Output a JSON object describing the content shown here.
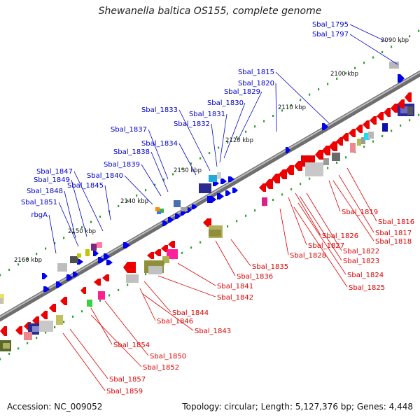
{
  "title": "Shewanella baltica OS155, complete genome",
  "footer": {
    "accession": "Accession: NC_009052",
    "topology": "Topology: circular; Length: 5,127,376 bp; Genes: 4,448"
  },
  "colors": {
    "forward_gene": "#0000ee",
    "reverse_gene": "#ee0000",
    "forward_label": "#0000cc",
    "reverse_label": "#dd0000",
    "backbone": "#8a8a8a",
    "tick": "#2e9e2e"
  },
  "kbp_ticks": [
    {
      "label": "2090 kbp",
      "side": "above"
    },
    {
      "label": "2100 kbp",
      "side": "above"
    },
    {
      "label": "2110 kbp",
      "side": "above"
    },
    {
      "label": "2120 kbp",
      "side": "above"
    },
    {
      "label": "2130 kbp",
      "side": "above"
    },
    {
      "label": "2140 kbp",
      "side": "above"
    },
    {
      "label": "2150 kbp",
      "side": "above"
    },
    {
      "label": "2160 kbp",
      "side": "above"
    }
  ],
  "forward_labels": [
    "Sbal_1795",
    "Sbal_1797",
    "Sbal_1815",
    "Sbal_1820",
    "Sbal_1829",
    "Sbal_1830",
    "Sbal_1831",
    "Sbal_1832",
    "Sbal_1833",
    "Sbal_1837",
    "Sbal_1834",
    "Sbal_1838",
    "Sbal_1839",
    "Sbal_1840",
    "Sbal_1847",
    "Sbal_1849",
    "Sbal_1845",
    "Sbal_1848",
    "Sbal_1851",
    "rbgA"
  ],
  "reverse_labels": [
    "Sbal_1819",
    "Sbal_1816",
    "Sbal_1817",
    "Sbal_1818",
    "Sbal_1826",
    "Sbal_1827",
    "Sbal_1828",
    "Sbal_1822",
    "Sbal_1823",
    "Sbal_1824",
    "Sbal_1825",
    "Sbal_1835",
    "Sbal_1836",
    "Sbal_1841",
    "Sbal_1842",
    "Sbal_1844",
    "Sbal_1846",
    "Sbal_1843",
    "Sbal_1854",
    "Sbal_1850",
    "Sbal_1852",
    "Sbal_1857",
    "Sbal_1859"
  ]
}
